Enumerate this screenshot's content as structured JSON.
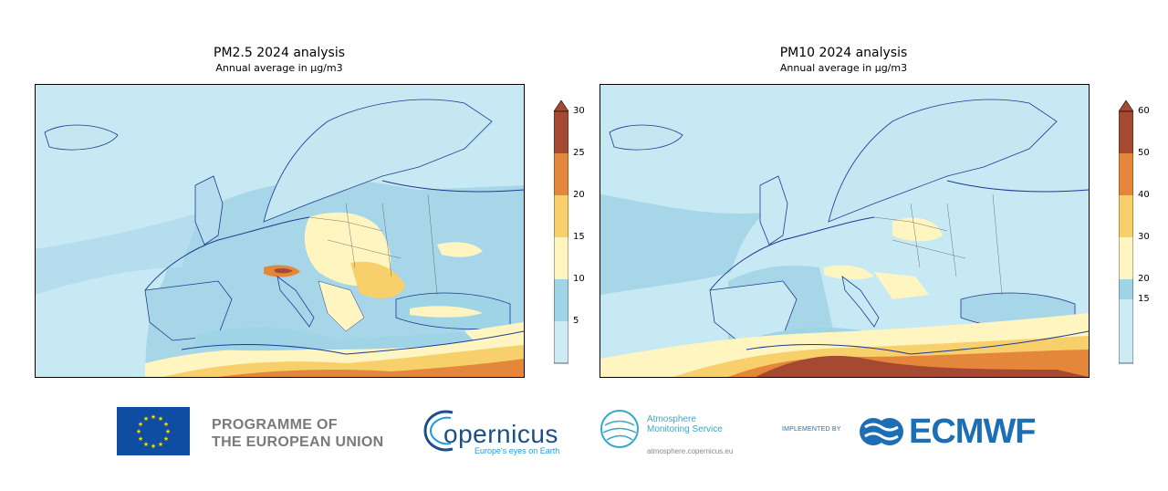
{
  "maps": [
    {
      "title": "PM2.5 2024 analysis",
      "subtitle": "Annual average in µg/m3",
      "colorbar": {
        "ticks": [
          "30",
          "25",
          "20",
          "15",
          "10",
          "5"
        ],
        "bands": [
          "#ccebf5",
          "#9fd3e6",
          "#fff5c0",
          "#f7cf6b",
          "#e5873a",
          "#a54a32"
        ]
      }
    },
    {
      "title": "PM10 2024 analysis",
      "subtitle": "Annual average in µg/m3",
      "colorbar": {
        "ticks": [
          "60",
          "50",
          "40",
          "30",
          "20",
          "15"
        ],
        "bands": [
          "#ccebf5",
          "#9fd3e6",
          "#fff5c0",
          "#f7cf6b",
          "#e5873a",
          "#a54a32"
        ]
      }
    }
  ],
  "footer": {
    "eu_line1": "PROGRAMME OF",
    "eu_line2": "THE EUROPEAN UNION",
    "copernicus_word": "opernicus",
    "copernicus_tagline": "Europe's eyes on Earth",
    "ams_line1": "Atmosphere",
    "ams_line2": "Monitoring Service",
    "ams_url": "atmosphere.copernicus.eu",
    "implemented_by": "IMPLEMENTED BY",
    "ecmwf": "ECMWF"
  },
  "colors": {
    "sea": "#c7e9f3",
    "land_low": "#a6d6e8",
    "coast": "#1f3a93",
    "eu_blue": "#0f4da2",
    "ecmwf_blue": "#1d6fb5"
  },
  "icons": [
    "eu-flag-icon",
    "copernicus-logo-icon",
    "ams-globe-icon",
    "ecmwf-logo-icon",
    "colorbar-triangle-icon"
  ]
}
